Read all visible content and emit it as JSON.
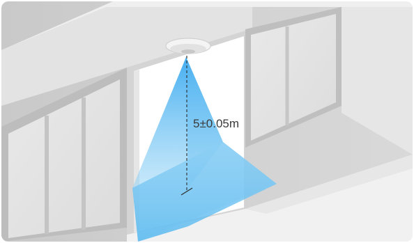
{
  "diagram": {
    "measurement_label": "5±0.05m",
    "colors": {
      "beam": "#4fb6f2",
      "wall": "#cfcfcf",
      "floor": "#f2f2f2",
      "door": "#ffffff",
      "dash": "#2b2b2b"
    },
    "icons": {
      "sensor": "ceiling-sensor-icon"
    }
  }
}
